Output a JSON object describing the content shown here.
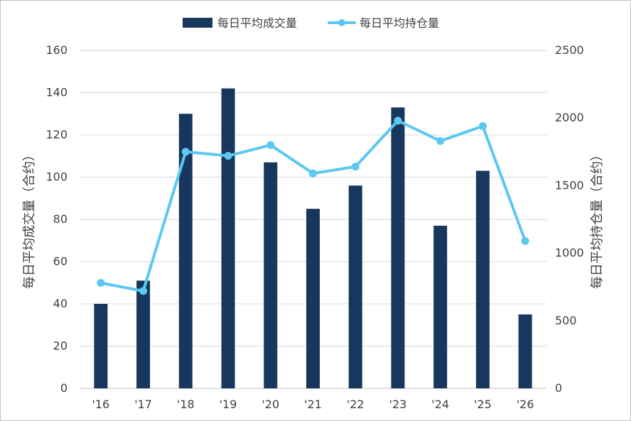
{
  "chart_data": {
    "type": "bar",
    "categories": [
      "'16",
      "'17",
      "'18",
      "'19",
      "'20",
      "'21",
      "'22",
      "'23",
      "'24",
      "'25",
      "'26"
    ],
    "series": [
      {
        "name": "每日平均成交量",
        "type": "bar",
        "axis": "left",
        "values": [
          40,
          51,
          130,
          142,
          107,
          85,
          96,
          133,
          77,
          103,
          35
        ]
      },
      {
        "name": "每日平均持仓量",
        "type": "line",
        "axis": "right",
        "values": [
          780,
          720,
          1750,
          1720,
          1800,
          1590,
          1640,
          1980,
          1830,
          1940,
          1090
        ]
      }
    ],
    "ylabel": "每日平均成交量（合约）",
    "ylabel_right": "每日平均持仓量（合约）",
    "ylim": [
      0,
      160
    ],
    "ylim_right": [
      0,
      2500
    ],
    "yticks": [
      "0",
      "20",
      "40",
      "60",
      "80",
      "100",
      "120",
      "140",
      "160"
    ],
    "yticks_right": [
      "0",
      "500",
      "1000",
      "1500",
      "2000",
      "2500"
    ],
    "grid": true,
    "legend_position": "top-center",
    "colors": {
      "bar": "#17375e",
      "line": "#5bc8f0"
    }
  }
}
